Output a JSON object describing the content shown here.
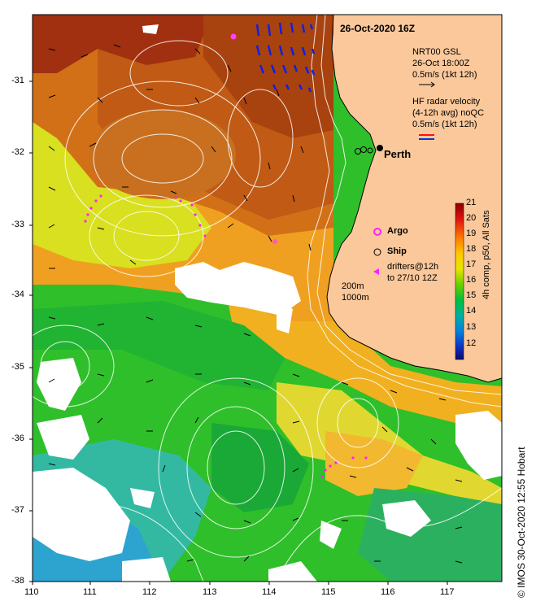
{
  "map": {
    "date_title": "26-Oct-2020 16Z",
    "city_label": "Perth",
    "legend": {
      "gsl_line1": "NRT00 GSL",
      "gsl_line2": "26-Oct 18:00Z",
      "gsl_line3": "0.5m/s (1kt 12h)",
      "hf_line1": "HF radar velocity",
      "hf_line2": "(4-12h avg) noQC",
      "hf_line3": "0.5m/s (1kt 12h)",
      "argo": "Argo",
      "ship": "Ship",
      "drifters_line1": "drifters@12h",
      "drifters_line2": "to 27/10 12Z",
      "iso_200": "200m",
      "iso_1000": "1000m"
    },
    "colorbar": {
      "title": "4h comp, p50, All Sats",
      "ticks": [
        "21",
        "20",
        "19",
        "18",
        "17",
        "16",
        "15",
        "14",
        "13",
        "12"
      ]
    },
    "axes": {
      "lat_ticks": [
        "-31",
        "-32",
        "-33",
        "-34",
        "-35",
        "-36",
        "-37",
        "-38"
      ],
      "lon_ticks": [
        "110",
        "111",
        "112",
        "113",
        "114",
        "115",
        "116",
        "117"
      ]
    },
    "footer_side": "© IMOS 30-Oct-2020 12:55 Hobart"
  }
}
